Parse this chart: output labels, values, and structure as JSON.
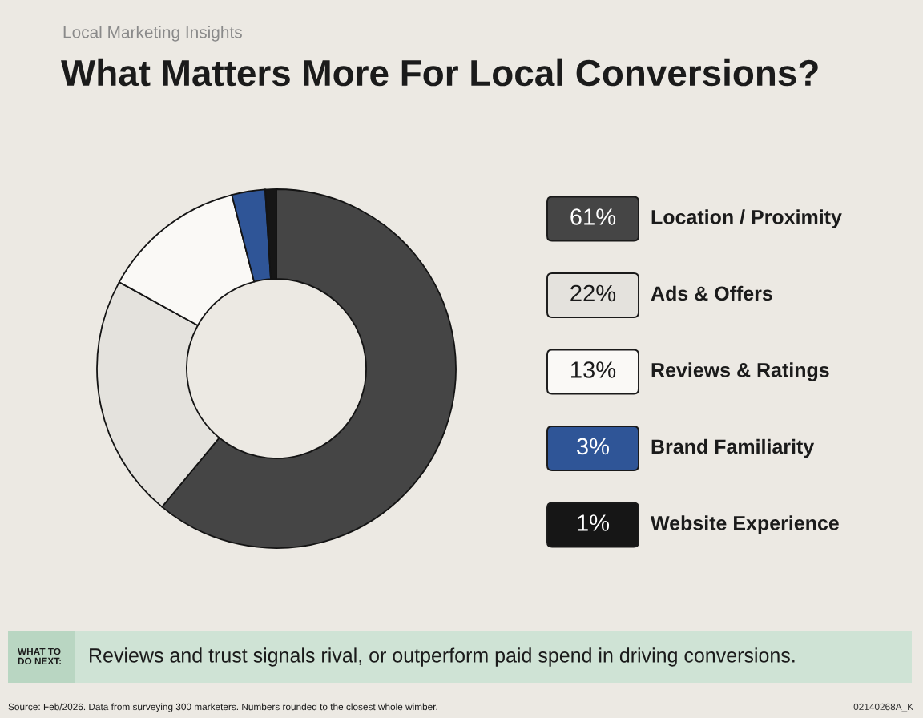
{
  "chart_data": {
    "type": "donut",
    "subtitle": "Local Marketing Insights",
    "title": "What Matters More For Local Conversions?",
    "categories": [
      "Location / Proximity",
      "Ads & Offers",
      "Reviews & Ratings",
      "Brand Familiarity",
      "Website Experience"
    ],
    "values": [
      61,
      22,
      13,
      3,
      1
    ],
    "value_labels": [
      "61%",
      "22%",
      "13%",
      "3%",
      "1%"
    ],
    "colors": [
      "#454545",
      "#e4e2dd",
      "#faf9f6",
      "#2f5597",
      "#161616"
    ],
    "legend": "right",
    "annotations": [
      "WHAT TO\nDO NEXT:",
      "Reviews and trust signals rival, or outperform paid spend in driving conversions.",
      "Source: Feb/2026. Data from surveying 300 marketers. Numbers rounded to the closest whole wimber.",
      "02140268A_K"
    ]
  }
}
